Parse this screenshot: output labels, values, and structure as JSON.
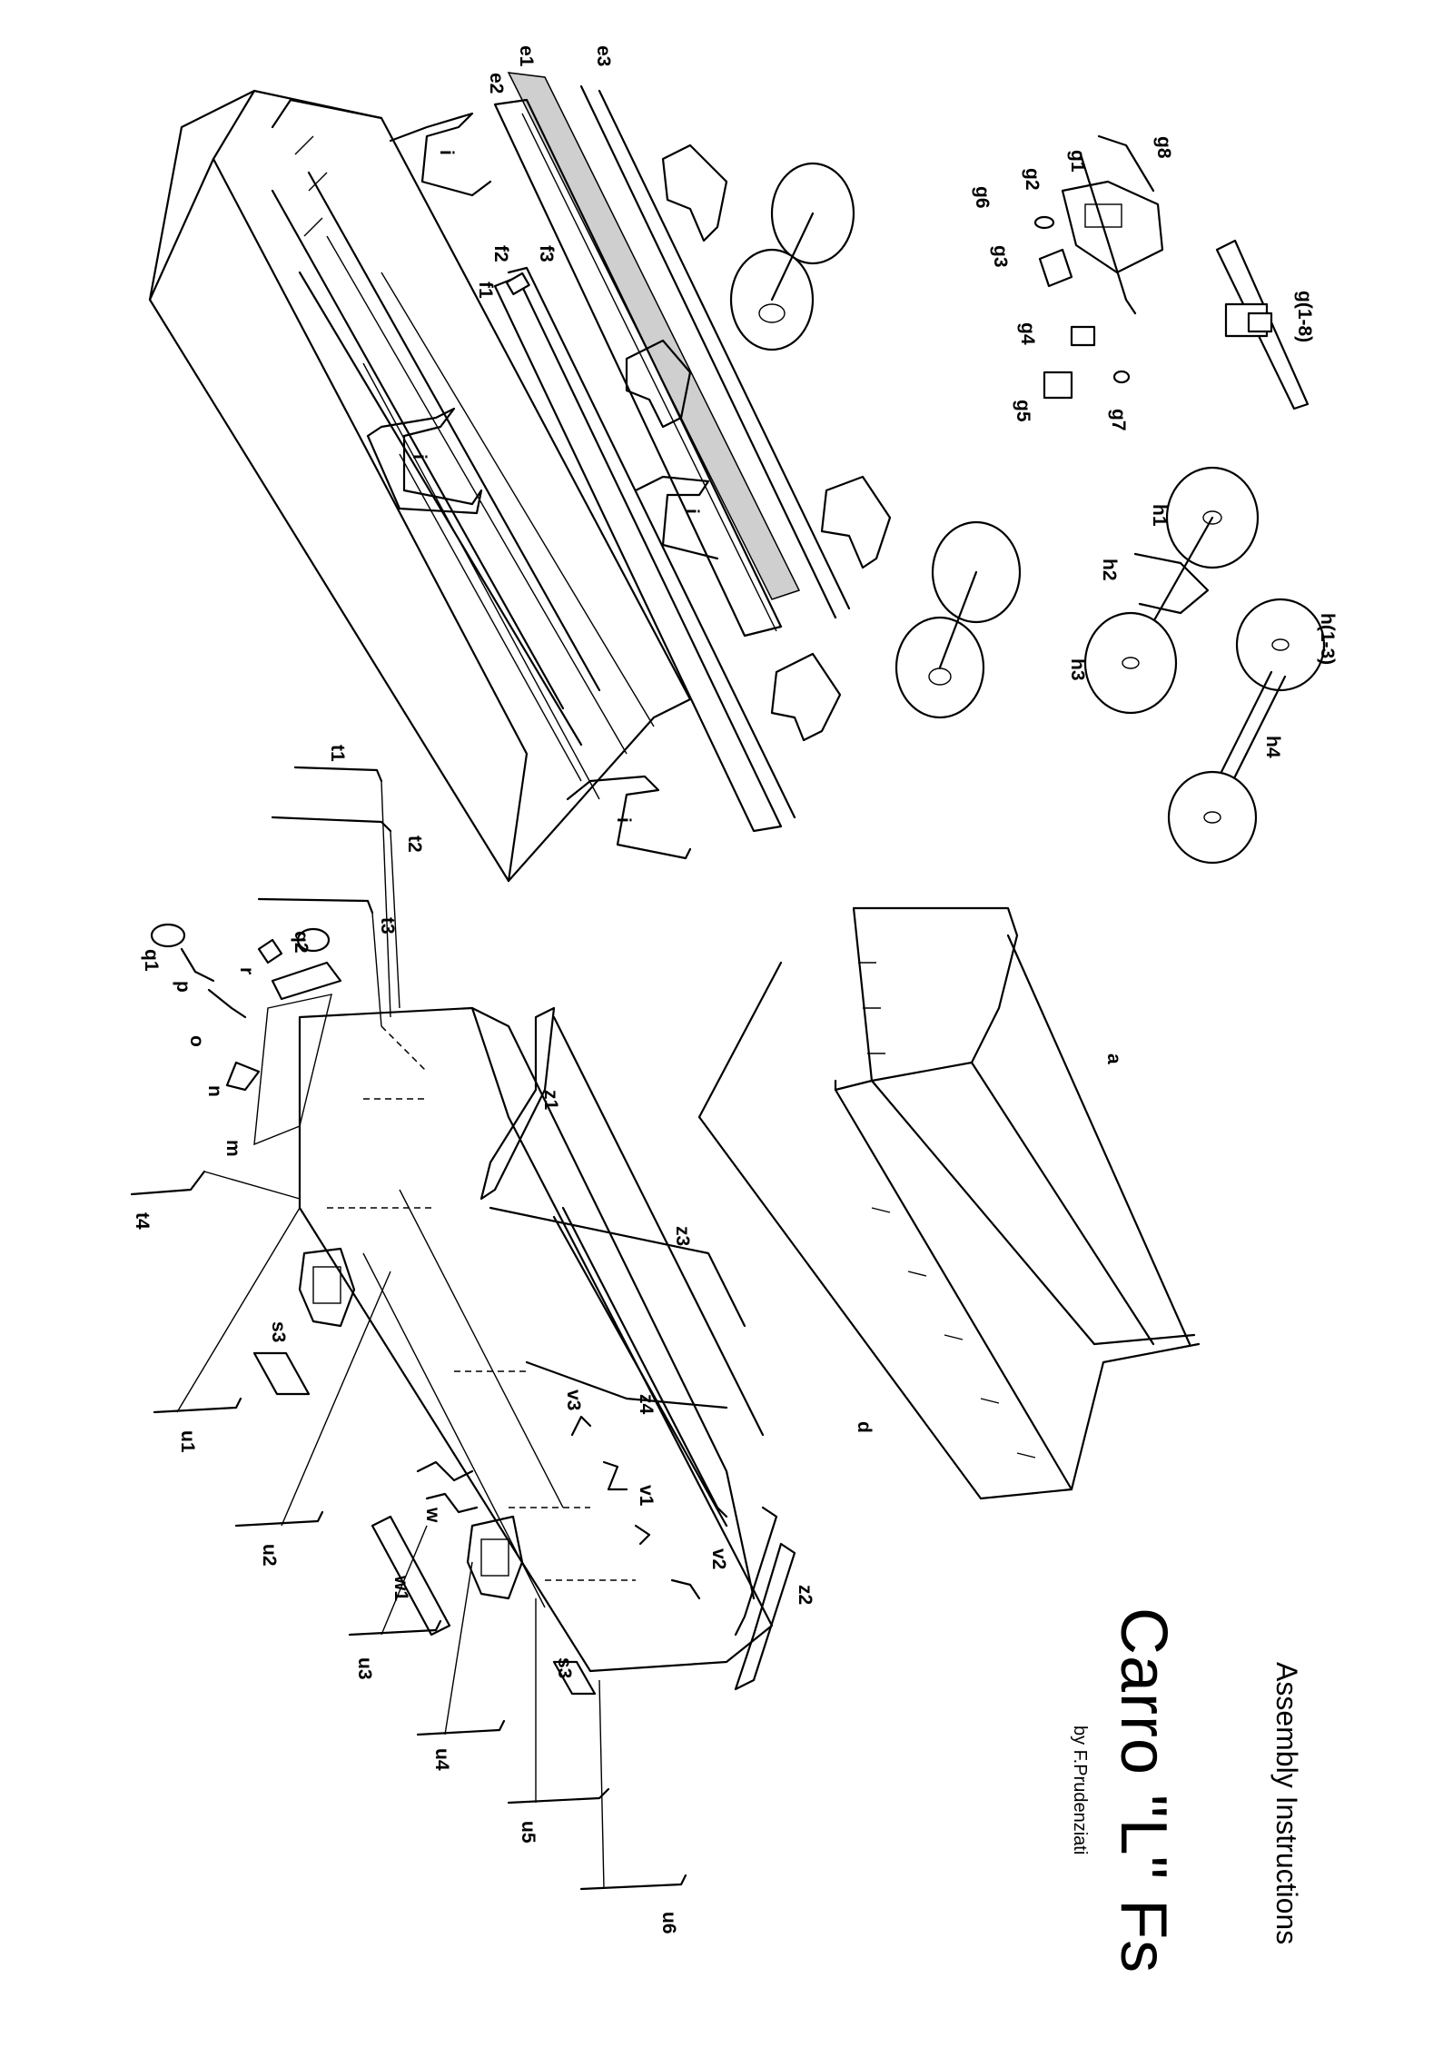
{
  "title": {
    "main": "Carro \"L\" Fs",
    "subtitle": "Assembly Instructions",
    "author": "by F.Prudenziati"
  },
  "labels": {
    "e1": "e1",
    "e2": "e2",
    "e3": "e3",
    "f1": "f1",
    "f2": "f2",
    "f3": "f3",
    "i": "i",
    "g1": "g1",
    "g2": "g2",
    "g3": "g3",
    "g4": "g4",
    "g5": "g5",
    "g6": "g6",
    "g7": "g7",
    "g8": "g8",
    "g_set": "g(1-8)",
    "h1": "h1",
    "h2": "h2",
    "h3": "h3",
    "h4": "h4",
    "h_set": "h(1-3)",
    "t1": "t1",
    "t2": "t2",
    "t3": "t3",
    "t4": "t4",
    "q1": "q1",
    "q2": "q2",
    "p": "p",
    "r": "r",
    "o": "o",
    "n": "n",
    "m": "m",
    "z1": "z1",
    "z2": "z2",
    "z3": "z3",
    "z4": "z4",
    "a": "a",
    "d": "d",
    "s3": "s3",
    "u1": "u1",
    "u2": "u2",
    "u3": "u3",
    "u4": "u4",
    "u5": "u5",
    "u6": "u6",
    "v1": "v1",
    "v2": "v2",
    "v3": "v3",
    "w": "w",
    "w1": "w1"
  },
  "colors": {
    "ink": "#000000",
    "paper": "#ffffff",
    "highlight": "#cfcfcf"
  }
}
